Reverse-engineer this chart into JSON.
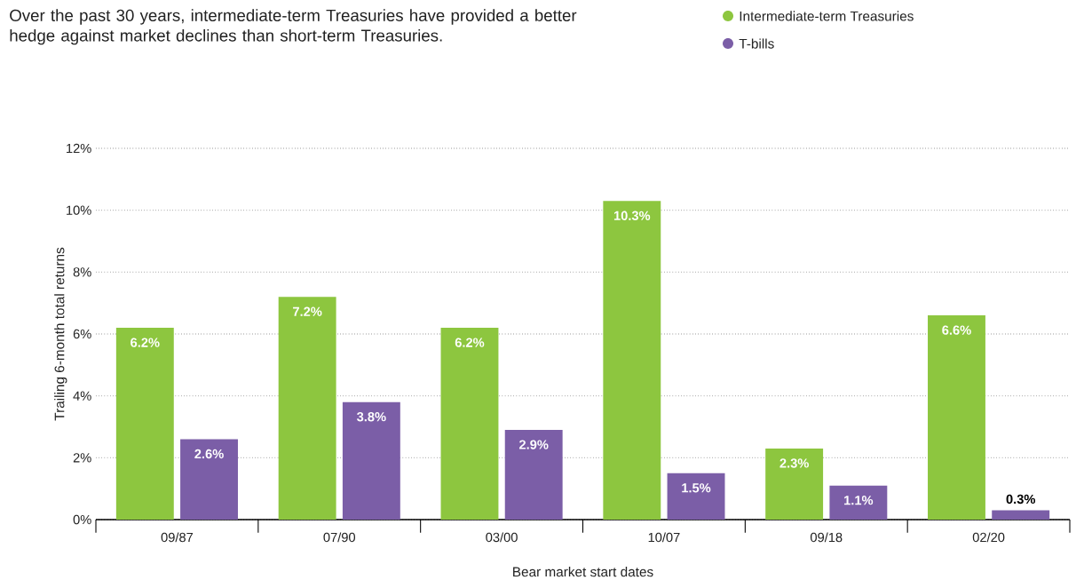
{
  "chart_data": {
    "type": "bar",
    "title": "Over the past 30 years, intermediate-term Treasuries have provided a better hedge against market declines than short-term Treasuries.",
    "xlabel": "Bear market start dates",
    "ylabel": "Trailing 6-month total returns",
    "categories": [
      "09/87",
      "07/90",
      "03/00",
      "10/07",
      "09/18",
      "02/20"
    ],
    "series": [
      {
        "name": "Intermediate-term Treasuries",
        "color": "#8dc63f",
        "values": [
          6.2,
          7.2,
          6.2,
          10.3,
          2.3,
          6.6
        ],
        "value_labels": [
          "6.2%",
          "7.2%",
          "6.2%",
          "10.3%",
          "2.3%",
          "6.6%"
        ]
      },
      {
        "name": "T-bills",
        "color": "#7b5ea7",
        "values": [
          2.6,
          3.8,
          2.9,
          1.5,
          1.1,
          0.3
        ],
        "value_labels": [
          "2.6%",
          "3.8%",
          "2.9%",
          "1.5%",
          "1.1%",
          "0.3%"
        ]
      }
    ],
    "ylim": [
      0,
      12
    ],
    "yticks": [
      {
        "value": 0,
        "label": "0%"
      },
      {
        "value": 2,
        "label": "2%"
      },
      {
        "value": 4,
        "label": "4%"
      },
      {
        "value": 6,
        "label": "6%"
      },
      {
        "value": 8,
        "label": "8%"
      },
      {
        "value": 10,
        "label": "10%"
      },
      {
        "value": 12,
        "label": "12%"
      }
    ],
    "grid": "y",
    "legend": "top right"
  }
}
